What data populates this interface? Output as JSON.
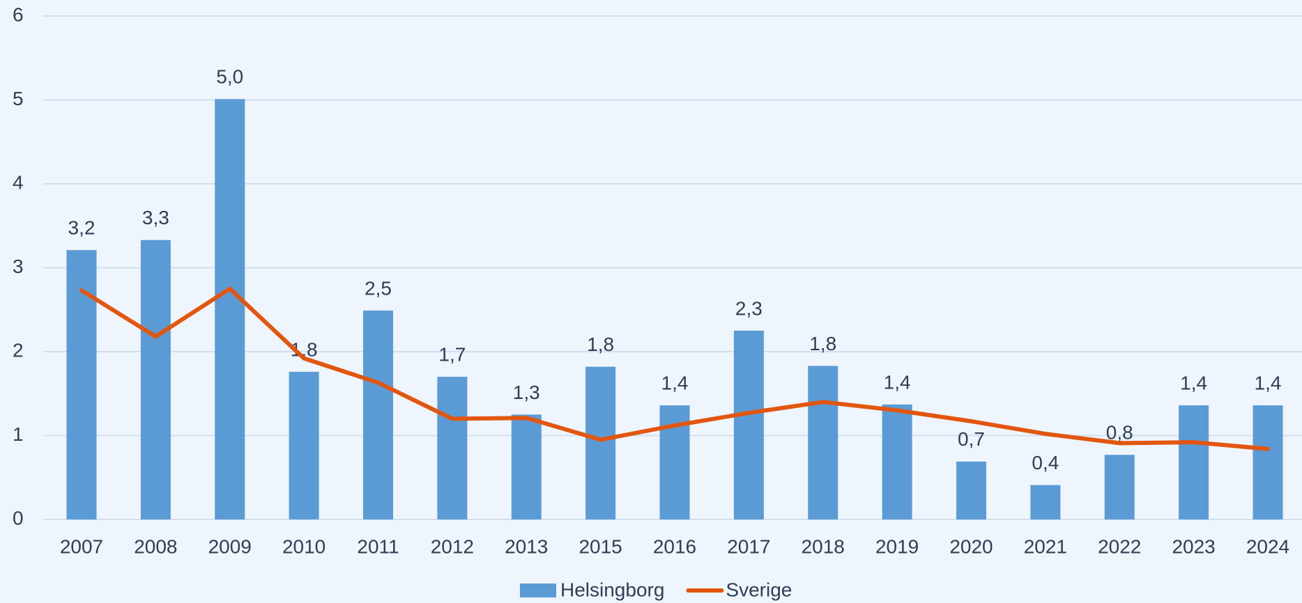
{
  "chart_data": {
    "type": "bar",
    "categories": [
      "2007",
      "2008",
      "2009",
      "2010",
      "2011",
      "2012",
      "2013",
      "2015",
      "2016",
      "2017",
      "2018",
      "2019",
      "2020",
      "2021",
      "2022",
      "2023",
      "2024"
    ],
    "series": [
      {
        "name": "Helsingborg",
        "type": "bar",
        "color": "#5b9bd5",
        "values": [
          3.21,
          3.33,
          5.01,
          1.76,
          2.49,
          1.7,
          1.25,
          1.82,
          1.36,
          2.25,
          1.83,
          1.37,
          0.69,
          0.41,
          0.77,
          1.36,
          1.36
        ],
        "value_labels": [
          "3,2",
          "3,3",
          "5,0",
          "1,8",
          "2,5",
          "1,7",
          "1,3",
          "1,8",
          "1,4",
          "2,3",
          "1,8",
          "1,4",
          "0,7",
          "0,4",
          "0,8",
          "1,4",
          "1,4"
        ]
      },
      {
        "name": "Sverige",
        "type": "line",
        "color": "#e2560f",
        "values": [
          2.73,
          2.18,
          2.75,
          1.92,
          1.63,
          1.2,
          1.21,
          0.95,
          1.12,
          1.27,
          1.4,
          1.3,
          1.17,
          1.02,
          0.91,
          0.92,
          0.84
        ]
      }
    ],
    "ylim": [
      0,
      6
    ],
    "yticks": [
      0,
      1,
      2,
      3,
      4,
      5,
      6
    ],
    "grid": true,
    "legend": "bottom"
  }
}
